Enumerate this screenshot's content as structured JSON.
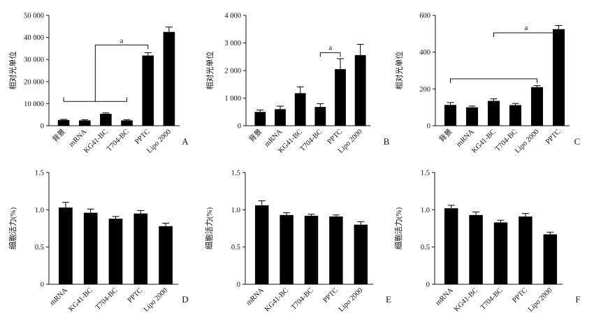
{
  "chart_data": [
    {
      "type": "bar",
      "panel": "A",
      "ylabel": "相对光单位",
      "categories": [
        "背景",
        "mRNA",
        "KG41-BC",
        "T704-BC",
        "PPTC",
        "Lipo 2000"
      ],
      "values": [
        2600,
        2400,
        5400,
        2400,
        31800,
        42500
      ],
      "errors": [
        300,
        300,
        400,
        300,
        1300,
        2200
      ],
      "yticks": [
        0,
        10000,
        20000,
        30000,
        40000,
        50000
      ],
      "ytick_labels": [
        "0",
        "10 000",
        "20 000",
        "30 000",
        "40 000",
        "50 000"
      ],
      "ylim": [
        0,
        50000
      ],
      "annotations": [
        {
          "text": "a",
          "from": 0,
          "to": 3,
          "target": 4,
          "line_y": 11000,
          "top_y": 36600
        }
      ]
    },
    {
      "type": "bar",
      "panel": "B",
      "ylabel": "相对光单位",
      "categories": [
        "背景",
        "mRNA",
        "KG41-BC",
        "T704-BC",
        "PPTC",
        "Lipo 2000"
      ],
      "values": [
        500,
        600,
        1180,
        680,
        2050,
        2560
      ],
      "errors": [
        70,
        110,
        230,
        120,
        380,
        390
      ],
      "yticks": [
        0,
        1000,
        2000,
        3000,
        4000
      ],
      "ytick_labels": [
        "0",
        "1 000",
        "2 000",
        "3 000",
        "4 000"
      ],
      "ylim": [
        0,
        4000
      ],
      "annotations": [
        {
          "text": "a",
          "from": 3,
          "to": 4,
          "line_y": 2650,
          "top_y": 2650
        }
      ]
    },
    {
      "type": "bar",
      "panel": "C",
      "ylabel": "相对光单位",
      "categories": [
        "背景",
        "mRNA",
        "KG41-BC",
        "T704-BC",
        "Lipo 2000",
        "PPTC"
      ],
      "values": [
        113,
        100,
        135,
        112,
        210,
        525
      ],
      "errors": [
        13,
        7,
        11,
        9,
        8,
        20
      ],
      "yticks": [
        0,
        200,
        400,
        600
      ],
      "ytick_labels": [
        "0",
        "200",
        "400",
        "600"
      ],
      "ylim": [
        0,
        600
      ],
      "annotations": [
        {
          "text": "",
          "from": 0,
          "to": 4,
          "line_y": 255,
          "top_y": 230
        },
        {
          "text": "a",
          "from": 2,
          "to": 5,
          "line_y": 505,
          "top_y": 505
        }
      ]
    },
    {
      "type": "bar",
      "panel": "D",
      "ylabel": "细胞活力(%)",
      "categories": [
        "mRNA",
        "KG41-BC",
        "T704-BC",
        "PPTC",
        "Lipo 2000"
      ],
      "values": [
        1.03,
        0.96,
        0.88,
        0.95,
        0.78
      ],
      "errors": [
        0.07,
        0.05,
        0.03,
        0.04,
        0.04
      ],
      "yticks": [
        0,
        0.5,
        1.0,
        1.5
      ],
      "ytick_labels": [
        "0",
        "0.5",
        "1.0",
        "1.5"
      ],
      "ylim": [
        0,
        1.5
      ]
    },
    {
      "type": "bar",
      "panel": "E",
      "ylabel": "细胞活力(%)",
      "categories": [
        "mRNA",
        "KG41-BC",
        "T704-BC",
        "PPTC",
        "Lipo 2000"
      ],
      "values": [
        1.06,
        0.93,
        0.92,
        0.91,
        0.8
      ],
      "errors": [
        0.06,
        0.03,
        0.02,
        0.02,
        0.04
      ],
      "yticks": [
        0,
        0.5,
        1.0,
        1.5
      ],
      "ytick_labels": [
        "0",
        "0.5",
        "1.0",
        "1.5"
      ],
      "ylim": [
        0,
        1.5
      ]
    },
    {
      "type": "bar",
      "panel": "F",
      "ylabel": "细胞活力(%)",
      "categories": [
        "mRNA",
        "KG41-BC",
        "T704-BC",
        "PPTC",
        "Lipo 2000"
      ],
      "values": [
        1.02,
        0.93,
        0.83,
        0.91,
        0.67
      ],
      "errors": [
        0.04,
        0.04,
        0.03,
        0.04,
        0.03
      ],
      "yticks": [
        0,
        0.5,
        1.0,
        1.5
      ],
      "ytick_labels": [
        "0",
        "0.5",
        "1.0",
        "1.5"
      ],
      "ylim": [
        0,
        1.5
      ]
    }
  ],
  "colors": {
    "bar": "#000000",
    "axis": "#111111"
  }
}
